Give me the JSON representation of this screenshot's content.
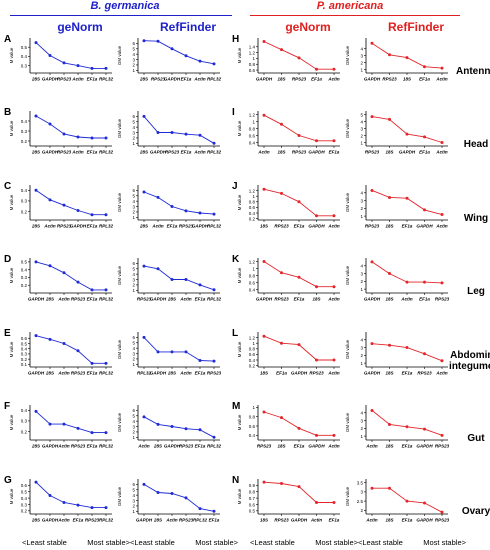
{
  "header": {
    "species_left": "B. germanica",
    "species_right": "P. americana",
    "species_left_color": "#1e22c8",
    "species_right_color": "#e02020",
    "methods": [
      "geNorm",
      "RefFinder",
      "geNorm",
      "RefFinder"
    ]
  },
  "tissues": [
    "Antenna",
    "Head",
    "Wing",
    "Leg",
    "Abdominal integument",
    "Gut",
    "Ovary"
  ],
  "footer": {
    "least_stable": "<Least stable",
    "most_stable": "Most stable>"
  },
  "colors": {
    "germanica_series": "#1f2bd6",
    "americana_series": "#e3262b"
  },
  "chart_data": [
    {
      "panel": "A",
      "tissue": "Antenna",
      "species": "B. germanica",
      "method": "geNorm",
      "type": "line",
      "ylabel": "M value",
      "yticks": [
        0.3,
        0.4,
        0.5
      ],
      "ylim": [
        0.22,
        0.6
      ],
      "categories": [
        "28S",
        "GAPDH",
        "RPS23",
        "Actin",
        "EF1a",
        "RPL32"
      ],
      "values": [
        0.55,
        0.41,
        0.33,
        0.3,
        0.27,
        0.27
      ]
    },
    {
      "panel": "",
      "tissue": "Antenna",
      "species": "B. germanica",
      "method": "RefFinder",
      "type": "line",
      "ylabel": "GM value",
      "yticks": [
        1,
        2,
        3,
        4,
        5,
        6
      ],
      "ylim": [
        0.5,
        7
      ],
      "categories": [
        "28S",
        "RPS23",
        "GAPDH",
        "EF1a",
        "Actin",
        "RPL32"
      ],
      "values": [
        6.5,
        6.4,
        5.0,
        3.7,
        2.7,
        2.2
      ]
    },
    {
      "panel": "H",
      "tissue": "Antenna",
      "species": "P. americana",
      "method": "geNorm",
      "type": "line",
      "ylabel": "M value",
      "yticks": [
        0.6,
        0.8,
        1.0,
        1.2,
        1.4
      ],
      "ylim": [
        0.5,
        1.7
      ],
      "categories": [
        "GAPDH",
        "18S",
        "RPS23",
        "EF1a",
        "Actin"
      ],
      "values": [
        1.58,
        1.3,
        1.02,
        0.63,
        0.63
      ]
    },
    {
      "panel": "",
      "tissue": "Antenna",
      "species": "P. americana",
      "method": "RefFinder",
      "type": "line",
      "ylabel": "GM value",
      "yticks": [
        1,
        2,
        3,
        4
      ],
      "ylim": [
        0.5,
        5.5
      ],
      "categories": [
        "GAPDH",
        "RPS23",
        "18S",
        "EF1a",
        "Actin"
      ],
      "values": [
        4.75,
        3.1,
        2.7,
        1.4,
        1.2
      ]
    },
    {
      "panel": "B",
      "tissue": "Head",
      "species": "B. germanica",
      "method": "geNorm",
      "type": "line",
      "ylabel": "M value",
      "yticks": [
        0.2,
        0.3,
        0.4
      ],
      "ylim": [
        0.15,
        0.5
      ],
      "categories": [
        "28S",
        "GAPDH",
        "RPS23",
        "Actin",
        "EF1a",
        "RPL32"
      ],
      "values": [
        0.45,
        0.37,
        0.27,
        0.24,
        0.23,
        0.23
      ]
    },
    {
      "panel": "",
      "tissue": "Head",
      "species": "B. germanica",
      "method": "RefFinder",
      "type": "line",
      "ylabel": "GM value",
      "yticks": [
        1,
        2,
        3,
        4,
        5,
        6
      ],
      "ylim": [
        0.5,
        7
      ],
      "categories": [
        "28S",
        "GAPDH",
        "RPS23",
        "EF1a",
        "Actin",
        "RPL32"
      ],
      "values": [
        6.0,
        3.0,
        3.0,
        2.7,
        2.5,
        1.0
      ]
    },
    {
      "panel": "I",
      "tissue": "Head",
      "species": "P. americana",
      "method": "geNorm",
      "type": "line",
      "ylabel": "M value",
      "yticks": [
        0.4,
        0.6,
        0.8,
        1.0,
        1.2
      ],
      "ylim": [
        0.3,
        1.3
      ],
      "categories": [
        "Actin",
        "18S",
        "RPS23",
        "GAPDH",
        "EF1a"
      ],
      "values": [
        1.18,
        0.92,
        0.6,
        0.45,
        0.45
      ]
    },
    {
      "panel": "",
      "tissue": "Head",
      "species": "P. americana",
      "method": "RefFinder",
      "type": "line",
      "ylabel": "GM value",
      "yticks": [
        1,
        2,
        3,
        4,
        5
      ],
      "ylim": [
        0.5,
        5.5
      ],
      "categories": [
        "RPS23",
        "18S",
        "GAPDH",
        "EF1a",
        "Actin"
      ],
      "values": [
        4.7,
        4.3,
        2.2,
        1.8,
        1.0
      ]
    },
    {
      "panel": "C",
      "tissue": "Wing",
      "species": "B. germanica",
      "method": "geNorm",
      "type": "line",
      "ylabel": "M value",
      "yticks": [
        0.2,
        0.3,
        0.4
      ],
      "ylim": [
        0.12,
        0.45
      ],
      "categories": [
        "28S",
        "Actin",
        "RPS23",
        "GAPDH",
        "EF1a",
        "RPL32"
      ],
      "values": [
        0.4,
        0.31,
        0.26,
        0.21,
        0.17,
        0.17
      ]
    },
    {
      "panel": "",
      "tissue": "Wing",
      "species": "B. germanica",
      "method": "RefFinder",
      "type": "line",
      "ylabel": "GM value",
      "yticks": [
        1,
        2,
        3,
        4,
        5,
        6
      ],
      "ylim": [
        0.5,
        7
      ],
      "categories": [
        "28S",
        "Actin",
        "EF1a",
        "RPS23",
        "GAPDH",
        "RPL32"
      ],
      "values": [
        5.7,
        4.7,
        3.0,
        2.2,
        1.8,
        1.6
      ]
    },
    {
      "panel": "J",
      "tissue": "Wing",
      "species": "P. americana",
      "method": "geNorm",
      "type": "line",
      "ylabel": "M value",
      "yticks": [
        0.2,
        0.4,
        0.6,
        0.8,
        1.0,
        1.2
      ],
      "ylim": [
        0.15,
        1.4
      ],
      "categories": [
        "18S",
        "RPS23",
        "EF1a",
        "GAPDH",
        "Actin"
      ],
      "values": [
        1.25,
        1.1,
        0.8,
        0.3,
        0.3
      ]
    },
    {
      "panel": "",
      "tissue": "Wing",
      "species": "P. americana",
      "method": "RefFinder",
      "type": "line",
      "ylabel": "GM value",
      "yticks": [
        1,
        2,
        3,
        4
      ],
      "ylim": [
        0.5,
        5
      ],
      "categories": [
        "RPS23",
        "18S",
        "EF1a",
        "GAPDH",
        "Actin"
      ],
      "values": [
        4.3,
        3.4,
        3.3,
        1.8,
        1.2
      ]
    },
    {
      "panel": "D",
      "tissue": "Leg",
      "species": "B. germanica",
      "method": "geNorm",
      "type": "line",
      "ylabel": "M value",
      "yticks": [
        0.2,
        0.3,
        0.4,
        0.5
      ],
      "ylim": [
        0.1,
        0.55
      ],
      "categories": [
        "GAPDH",
        "28S",
        "Actin",
        "RPS23",
        "EF1a",
        "RPL32"
      ],
      "values": [
        0.5,
        0.45,
        0.36,
        0.24,
        0.14,
        0.14
      ]
    },
    {
      "panel": "",
      "tissue": "Leg",
      "species": "B. germanica",
      "method": "RefFinder",
      "type": "line",
      "ylabel": "GM value",
      "yticks": [
        1,
        2,
        3,
        4,
        5,
        6
      ],
      "ylim": [
        0.5,
        7
      ],
      "categories": [
        "RPS23",
        "GAPDH",
        "28S",
        "Actin",
        "EF1a",
        "RPL32"
      ],
      "values": [
        5.5,
        5.0,
        3.0,
        3.0,
        2.0,
        1.1
      ]
    },
    {
      "panel": "K",
      "tissue": "Leg",
      "species": "P. americana",
      "method": "geNorm",
      "type": "line",
      "ylabel": "M value",
      "yticks": [
        0.4,
        0.6,
        0.8,
        1.0,
        1.2
      ],
      "ylim": [
        0.3,
        1.3
      ],
      "categories": [
        "GAPDH",
        "RPS23",
        "EF1a",
        "18S",
        "Actin"
      ],
      "values": [
        1.2,
        0.88,
        0.75,
        0.48,
        0.48
      ]
    },
    {
      "panel": "",
      "tissue": "Leg",
      "species": "P. americana",
      "method": "RefFinder",
      "type": "line",
      "ylabel": "GM value",
      "yticks": [
        1,
        2,
        3,
        4
      ],
      "ylim": [
        0.5,
        5
      ],
      "categories": [
        "GAPDH",
        "18S",
        "Actin",
        "EF1a",
        "RPS23"
      ],
      "values": [
        4.5,
        3.0,
        1.9,
        1.9,
        1.8
      ]
    },
    {
      "panel": "E",
      "tissue": "Abdominal integument",
      "species": "B. germanica",
      "method": "geNorm",
      "type": "line",
      "ylabel": "M value",
      "yticks": [
        0.1,
        0.2,
        0.3,
        0.4,
        0.5,
        0.6
      ],
      "ylim": [
        0.05,
        0.72
      ],
      "categories": [
        "GAPDH",
        "28S",
        "Actin",
        "RPS23",
        "EF1a",
        "RPL32"
      ],
      "values": [
        0.65,
        0.58,
        0.5,
        0.36,
        0.12,
        0.12
      ]
    },
    {
      "panel": "",
      "tissue": "Abdominal integument",
      "species": "B. germanica",
      "method": "RefFinder",
      "type": "line",
      "ylabel": "GM value",
      "yticks": [
        1,
        2,
        3,
        4,
        5,
        6
      ],
      "ylim": [
        0.5,
        7
      ],
      "categories": [
        "RPL32",
        "GAPDH",
        "28S",
        "Actin",
        "EF1a",
        "RPS23"
      ],
      "values": [
        6.0,
        3.3,
        3.3,
        3.3,
        1.7,
        1.6
      ]
    },
    {
      "panel": "L",
      "tissue": "Abdominal integument",
      "species": "P. americana",
      "method": "geNorm",
      "type": "line",
      "ylabel": "M value",
      "yticks": [
        0.2,
        0.4,
        0.6,
        0.8,
        1.0,
        1.2
      ],
      "ylim": [
        0.15,
        1.4
      ],
      "categories": [
        "18S",
        "EF1a",
        "GAPDH",
        "RPS23",
        "Actin"
      ],
      "values": [
        1.25,
        1.0,
        0.95,
        0.4,
        0.4
      ]
    },
    {
      "panel": "",
      "tissue": "Abdominal integument",
      "species": "P. americana",
      "method": "RefFinder",
      "type": "line",
      "ylabel": "GM value",
      "yticks": [
        1,
        2,
        3,
        4
      ],
      "ylim": [
        0.5,
        5
      ],
      "categories": [
        "GAPDH",
        "18S",
        "EF1a",
        "RPS23",
        "Actin"
      ],
      "values": [
        3.5,
        3.3,
        3.0,
        2.2,
        1.3
      ]
    },
    {
      "panel": "F",
      "tissue": "Gut",
      "species": "B. germanica",
      "method": "geNorm",
      "type": "line",
      "ylabel": "M value",
      "yticks": [
        0.2,
        0.3,
        0.4
      ],
      "ylim": [
        0.12,
        0.45
      ],
      "categories": [
        "28S",
        "GAPDH",
        "Actin",
        "RPS23",
        "EF1a",
        "RPL32"
      ],
      "values": [
        0.39,
        0.27,
        0.27,
        0.23,
        0.19,
        0.19
      ]
    },
    {
      "panel": "",
      "tissue": "Gut",
      "species": "B. germanica",
      "method": "RefFinder",
      "type": "line",
      "ylabel": "GM value",
      "yticks": [
        1,
        2,
        3,
        4,
        5,
        6
      ],
      "ylim": [
        0.5,
        7
      ],
      "categories": [
        "Actin",
        "28S",
        "GAPDH",
        "RPS23",
        "EF1a",
        "RPL32"
      ],
      "values": [
        4.8,
        3.4,
        3.0,
        2.6,
        2.4,
        1.0
      ]
    },
    {
      "panel": "M",
      "tissue": "Gut",
      "species": "P. americana",
      "method": "geNorm",
      "type": "line",
      "ylabel": "M value",
      "yticks": [
        0.4,
        0.6,
        0.8,
        1.0
      ],
      "ylim": [
        0.3,
        1.05
      ],
      "categories": [
        "RPS23",
        "18S",
        "EF1a",
        "GAPDH",
        "Actin"
      ],
      "values": [
        0.9,
        0.78,
        0.55,
        0.4,
        0.4
      ]
    },
    {
      "panel": "",
      "tissue": "Gut",
      "species": "P. americana",
      "method": "RefFinder",
      "type": "line",
      "ylabel": "GM value",
      "yticks": [
        1,
        2,
        3,
        4
      ],
      "ylim": [
        0.5,
        5
      ],
      "categories": [
        "Actin",
        "18S",
        "EF1a",
        "GAPDH",
        "RPS23"
      ],
      "values": [
        4.3,
        2.5,
        2.2,
        1.9,
        1.1
      ]
    },
    {
      "panel": "G",
      "tissue": "Ovary",
      "species": "B. germanica",
      "method": "geNorm",
      "type": "line",
      "ylabel": "M value",
      "yticks": [
        0.2,
        0.3,
        0.4,
        0.5,
        0.6
      ],
      "ylim": [
        0.15,
        0.7
      ],
      "categories": [
        "28S",
        "GAPDH",
        "Actin",
        "EF1a",
        "RPS23",
        "RPL32"
      ],
      "values": [
        0.65,
        0.44,
        0.33,
        0.29,
        0.25,
        0.25
      ]
    },
    {
      "panel": "",
      "tissue": "Ovary",
      "species": "B. germanica",
      "method": "RefFinder",
      "type": "line",
      "ylabel": "GM value",
      "yticks": [
        1,
        2,
        3,
        4,
        5,
        6
      ],
      "ylim": [
        0.5,
        7
      ],
      "categories": [
        "GAPDH",
        "28S",
        "Actin",
        "RPS23",
        "RPL32",
        "EF1a"
      ],
      "values": [
        6.0,
        4.5,
        4.3,
        3.5,
        1.5,
        1.0
      ]
    },
    {
      "panel": "N",
      "tissue": "Ovary",
      "species": "P. americana",
      "method": "geNorm",
      "type": "line",
      "ylabel": "M value",
      "yticks": [
        0.5,
        0.6,
        0.7,
        0.8,
        0.9
      ],
      "ylim": [
        0.45,
        1.0
      ],
      "categories": [
        "18S",
        "RPS23",
        "GAPDH",
        "Actin",
        "EF1a"
      ],
      "values": [
        0.95,
        0.93,
        0.88,
        0.63,
        0.63
      ]
    },
    {
      "panel": "",
      "tissue": "Ovary",
      "species": "P. americana",
      "method": "RefFinder",
      "type": "line",
      "ylabel": "GM value",
      "yticks": [
        2.0,
        2.5,
        3.0,
        3.5
      ],
      "ylim": [
        1.8,
        3.7
      ],
      "categories": [
        "Actin",
        "18S",
        "EF1a",
        "GAPDH",
        "RPS23"
      ],
      "values": [
        3.2,
        3.2,
        2.5,
        2.4,
        1.9
      ]
    }
  ]
}
